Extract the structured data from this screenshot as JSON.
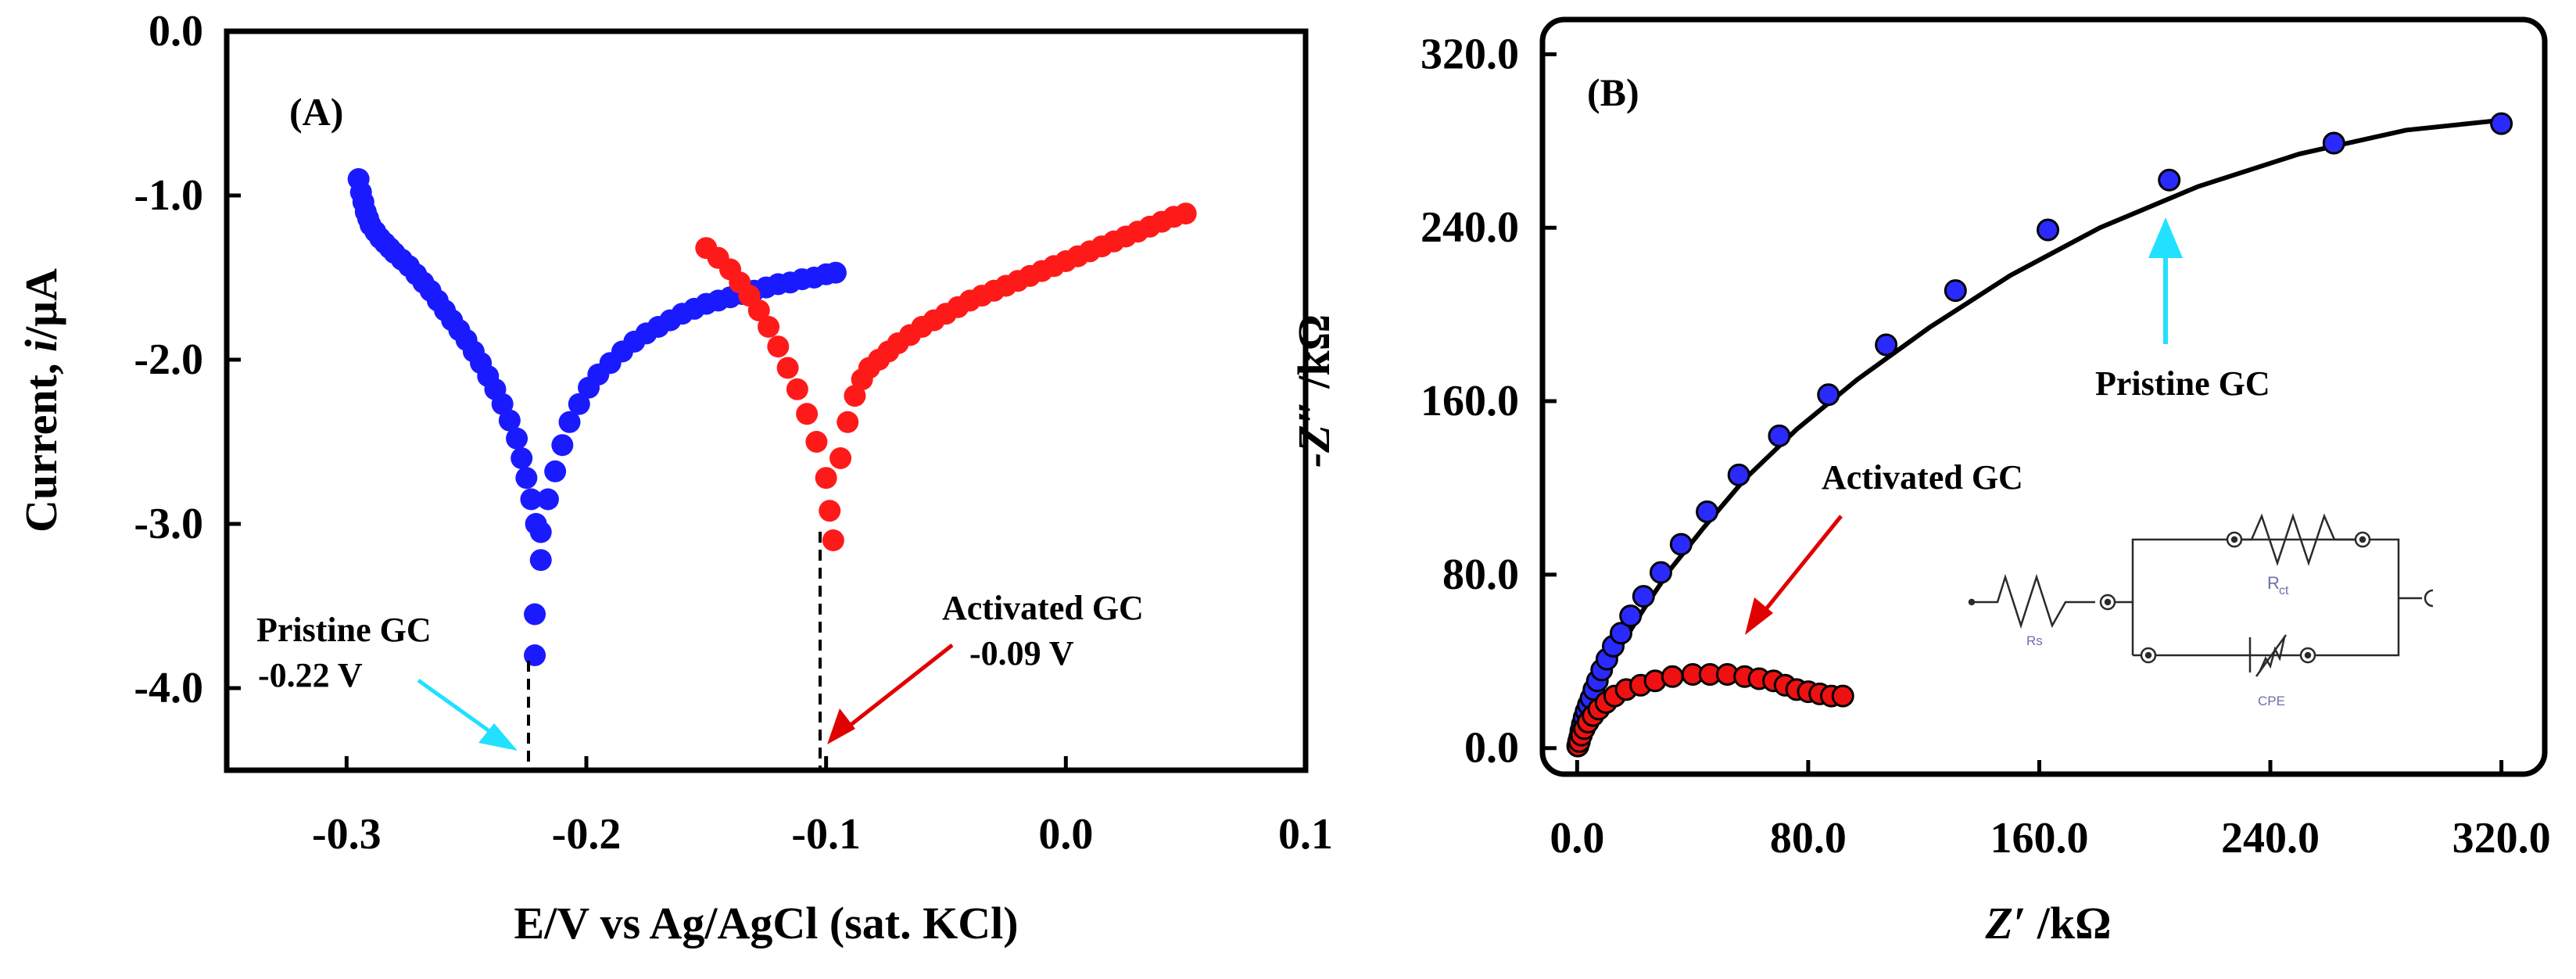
{
  "chart_data": [
    {
      "panel": "(A)",
      "type": "scatter",
      "xlabel": "E/V vs Ag/AgCl (sat. KCl)",
      "ylabel_prefix": "Current, ",
      "ylabel_italic": "i",
      "ylabel_suffix": "/μA",
      "xlim": [
        -0.35,
        0.1
      ],
      "ylim": [
        -4.5,
        0.0
      ],
      "xticks": [
        -0.3,
        -0.2,
        -0.1,
        0.0,
        0.1
      ],
      "xtick_labels": [
        "-0.3",
        "-0.2",
        "-0.1",
        "0.0",
        "0.1"
      ],
      "yticks": [
        0.0,
        -1.0,
        -2.0,
        -3.0,
        -4.0
      ],
      "ytick_labels": [
        "0.0",
        "-1.0",
        "-2.0",
        "-3.0",
        "-4.0"
      ],
      "series": [
        {
          "name": "Pristine GC",
          "color": "#1a1aff",
          "x": [
            -0.295,
            -0.294,
            -0.293,
            -0.292,
            -0.291,
            -0.29,
            -0.288,
            -0.286,
            -0.284,
            -0.282,
            -0.28,
            -0.277,
            -0.274,
            -0.271,
            -0.268,
            -0.265,
            -0.262,
            -0.259,
            -0.256,
            -0.253,
            -0.25,
            -0.247,
            -0.244,
            -0.241,
            -0.238,
            -0.235,
            -0.232,
            -0.229,
            -0.227,
            -0.225,
            -0.223,
            -0.221,
            -0.219,
            -0.2215,
            -0.2215,
            -0.219,
            -0.216,
            -0.213,
            -0.21,
            -0.207,
            -0.203,
            -0.199,
            -0.195,
            -0.19,
            -0.185,
            -0.18,
            -0.175,
            -0.17,
            -0.165,
            -0.16,
            -0.155,
            -0.15,
            -0.145,
            -0.14,
            -0.135,
            -0.13,
            -0.125,
            -0.12,
            -0.115,
            -0.11,
            -0.105,
            -0.1,
            -0.096
          ],
          "y": [
            -0.9,
            -0.98,
            -1.04,
            -1.1,
            -1.14,
            -1.18,
            -1.22,
            -1.26,
            -1.29,
            -1.32,
            -1.35,
            -1.39,
            -1.43,
            -1.48,
            -1.53,
            -1.58,
            -1.64,
            -1.7,
            -1.76,
            -1.82,
            -1.88,
            -1.95,
            -2.02,
            -2.1,
            -2.18,
            -2.27,
            -2.37,
            -2.48,
            -2.6,
            -2.72,
            -2.85,
            -3.0,
            -3.22,
            -3.55,
            -3.8,
            -3.05,
            -2.85,
            -2.68,
            -2.52,
            -2.38,
            -2.27,
            -2.17,
            -2.09,
            -2.02,
            -1.95,
            -1.89,
            -1.84,
            -1.8,
            -1.76,
            -1.72,
            -1.69,
            -1.66,
            -1.64,
            -1.62,
            -1.6,
            -1.58,
            -1.56,
            -1.54,
            -1.53,
            -1.51,
            -1.5,
            -1.48,
            -1.47
          ]
        },
        {
          "name": "Activated GC",
          "color": "#ff1a1a",
          "x": [
            -0.15,
            -0.145,
            -0.14,
            -0.136,
            -0.132,
            -0.128,
            -0.124,
            -0.12,
            -0.116,
            -0.112,
            -0.108,
            -0.104,
            -0.1,
            -0.0985,
            -0.097,
            -0.094,
            -0.091,
            -0.088,
            -0.085,
            -0.082,
            -0.078,
            -0.074,
            -0.07,
            -0.065,
            -0.06,
            -0.055,
            -0.05,
            -0.045,
            -0.04,
            -0.035,
            -0.03,
            -0.025,
            -0.02,
            -0.015,
            -0.01,
            -0.005,
            0.0,
            0.005,
            0.01,
            0.015,
            0.02,
            0.025,
            0.03,
            0.035,
            0.04,
            0.045,
            0.05
          ],
          "y": [
            -1.32,
            -1.38,
            -1.45,
            -1.53,
            -1.61,
            -1.7,
            -1.8,
            -1.92,
            -2.05,
            -2.18,
            -2.33,
            -2.5,
            -2.72,
            -2.92,
            -3.1,
            -2.6,
            -2.38,
            -2.22,
            -2.12,
            -2.05,
            -2.0,
            -1.95,
            -1.9,
            -1.85,
            -1.8,
            -1.76,
            -1.72,
            -1.68,
            -1.64,
            -1.61,
            -1.58,
            -1.55,
            -1.52,
            -1.49,
            -1.46,
            -1.43,
            -1.4,
            -1.37,
            -1.34,
            -1.31,
            -1.28,
            -1.25,
            -1.22,
            -1.19,
            -1.16,
            -1.13,
            -1.11
          ]
        }
      ],
      "annotations": [
        {
          "text": "Pristine GC",
          "value": "-0.22 V",
          "arrow_color": "#22e0ff",
          "x": -0.22
        },
        {
          "text": "Activated GC",
          "value": "-0.09 V",
          "arrow_color": "#e00000",
          "x": -0.095
        }
      ]
    },
    {
      "panel": "(B)",
      "type": "scatter",
      "xlabel_italic": "Z′",
      "xlabel_suffix": " /kΩ",
      "ylabel_italic": "-Z″",
      "ylabel_suffix": " /kΩ",
      "xlim": [
        -12,
        335
      ],
      "ylim": [
        -12,
        336
      ],
      "xticks": [
        0,
        80,
        160,
        240,
        320
      ],
      "xtick_labels": [
        "0.0",
        "80.0",
        "160.0",
        "240.0",
        "320.0"
      ],
      "yticks": [
        0,
        80,
        160,
        240,
        320
      ],
      "ytick_labels": [
        "0.0",
        "80.0",
        "160.0",
        "240.0",
        "320.0"
      ],
      "series": [
        {
          "name": "Pristine GC",
          "color": "#2a2aff",
          "x": [
            0.2,
            0.5,
            0.9,
            1.3,
            1.8,
            2.4,
            3.1,
            3.9,
            4.8,
            5.8,
            7.0,
            8.5,
            10.3,
            12.5,
            15.2,
            18.5,
            23,
            29,
            36,
            45,
            56,
            70,
            87,
            107,
            131,
            163,
            205,
            262,
            320
          ],
          "y": [
            1,
            3,
            5,
            8,
            11,
            14,
            17,
            20,
            23,
            27,
            31,
            36,
            41,
            47,
            53,
            61,
            70,
            81,
            94,
            109,
            126,
            144,
            163,
            186,
            211,
            239,
            262,
            279,
            288
          ],
          "fit_x": [
            0,
            1,
            2,
            4,
            7,
            11,
            16,
            23,
            32,
            44,
            58,
            76,
            97,
            122,
            150,
            181,
            215,
            250,
            287,
            323
          ],
          "fit_y": [
            0,
            4,
            9,
            16,
            25,
            36,
            49,
            64,
            82,
            102,
            124,
            147,
            170,
            194,
            218,
            240,
            259,
            274,
            285,
            290
          ]
        },
        {
          "name": "Activated GC",
          "color": "#ee1111",
          "x": [
            0.3,
            0.8,
            1.5,
            2.5,
            3.8,
            5.5,
            7.5,
            10,
            13,
            17,
            22,
            27,
            33,
            40,
            46,
            52,
            58,
            63,
            68,
            72,
            76,
            80,
            84,
            88,
            92
          ],
          "y": [
            1,
            3,
            6,
            9,
            12,
            15,
            18,
            21,
            24,
            27,
            29,
            31,
            33,
            34,
            34,
            34,
            33,
            32,
            31,
            29,
            27,
            26,
            25,
            24,
            24
          ]
        }
      ],
      "annotations": [
        {
          "text": "Pristine GC",
          "arrow_color": "#22e0ff"
        },
        {
          "text": "Activated GC",
          "arrow_color": "#e00000"
        }
      ],
      "inset_circuit": {
        "labels": [
          "Rs",
          "R",
          "ct",
          "CPE"
        ]
      }
    }
  ]
}
